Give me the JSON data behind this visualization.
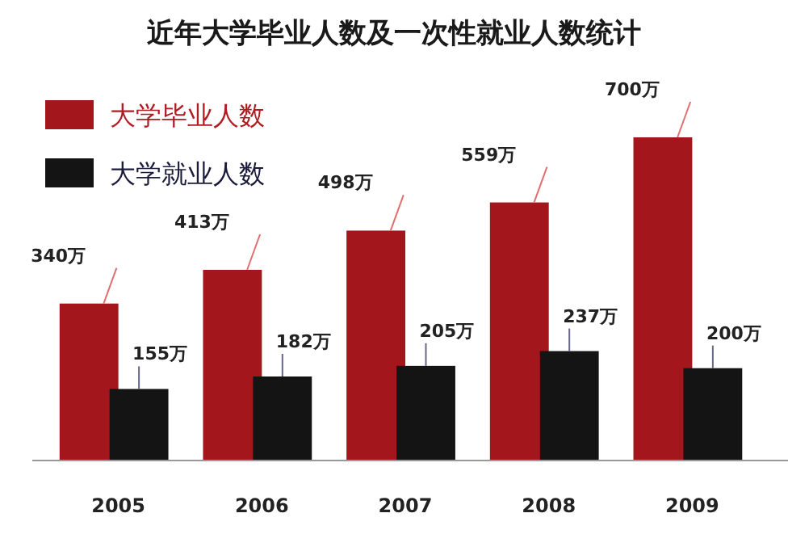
{
  "chart_data": {
    "type": "bar",
    "title": "近年大学毕业人数及一次性就业人数统计",
    "categories": [
      "2005",
      "2006",
      "2007",
      "2008",
      "2009"
    ],
    "series": [
      {
        "name": "大学毕业人数",
        "color": "#a3161b",
        "values": [
          340,
          413,
          498,
          559,
          700
        ],
        "value_labels": [
          "340万",
          "413万",
          "498万",
          "559万",
          "700万"
        ]
      },
      {
        "name": "大学就业人数",
        "color": "#141414",
        "values": [
          155,
          182,
          205,
          237,
          200
        ],
        "value_labels": [
          "155万",
          "182万",
          "205万",
          "237万",
          "200万"
        ]
      }
    ],
    "legend": "top left",
    "grid": false
  }
}
